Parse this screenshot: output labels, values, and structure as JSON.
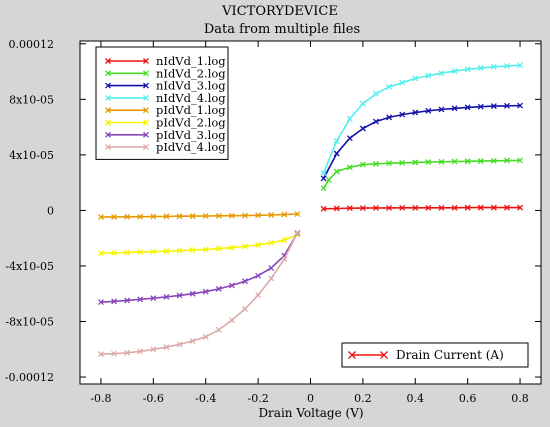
{
  "chart_data": {
    "type": "line",
    "title": "VICTORYDEVICE",
    "subtitle": "Data from multiple files",
    "xlabel": "Drain Voltage (V)",
    "ylabel": "",
    "xlim": [
      -0.88,
      0.88
    ],
    "ylim": [
      -0.000125,
      0.000122
    ],
    "x_ticks": [
      -0.8,
      -0.6,
      -0.4,
      -0.2,
      0,
      0.2,
      0.4,
      0.6,
      0.8
    ],
    "x_tick_labels": [
      "-0.8",
      "-0.6",
      "-0.4",
      "-0.2",
      "0",
      "0.2",
      "0.4",
      "0.6",
      "0.8"
    ],
    "y_ticks": [
      0.00012,
      8e-05,
      4e-05,
      0,
      -4e-05,
      -8e-05,
      -0.00012
    ],
    "y_tick_labels": [
      "0.00012",
      "8x10-05",
      "4x10-05",
      "0",
      "-4x10-05",
      "-8x10-05",
      "-0.00012"
    ],
    "grid": false,
    "legend_position": "top-left",
    "legend_bottom": {
      "position": "bottom-right",
      "label": "Drain Current (A)",
      "color": "#ee1111"
    },
    "series": [
      {
        "name": "nIdVd_1.log",
        "color": "#ee1111",
        "x": [
          0.05,
          0.1,
          0.15,
          0.2,
          0.25,
          0.3,
          0.35,
          0.4,
          0.45,
          0.5,
          0.55,
          0.6,
          0.65,
          0.7,
          0.75,
          0.8
        ],
        "y": [
          1.2e-06,
          1.4e-06,
          1.6e-06,
          1.7e-06,
          1.8e-06,
          1.8e-06,
          1.9e-06,
          1.9e-06,
          1.9e-06,
          1.9e-06,
          1.9e-06,
          2e-06,
          2e-06,
          2e-06,
          2e-06,
          2e-06
        ]
      },
      {
        "name": "nIdVd_2.log",
        "color": "#44dd22",
        "x": [
          0.05,
          0.07,
          0.1,
          0.15,
          0.2,
          0.25,
          0.3,
          0.35,
          0.4,
          0.45,
          0.5,
          0.55,
          0.6,
          0.65,
          0.7,
          0.75,
          0.8
        ],
        "y": [
          1.6e-05,
          2.2e-05,
          2.8e-05,
          3.1e-05,
          3.3e-05,
          3.35e-05,
          3.4e-05,
          3.43e-05,
          3.46e-05,
          3.48e-05,
          3.5e-05,
          3.52e-05,
          3.54e-05,
          3.55e-05,
          3.57e-05,
          3.59e-05,
          3.6e-05
        ]
      },
      {
        "name": "nIdVd_3.log",
        "color": "#1111aa",
        "x": [
          0.05,
          0.1,
          0.15,
          0.2,
          0.25,
          0.3,
          0.35,
          0.4,
          0.45,
          0.5,
          0.55,
          0.6,
          0.65,
          0.7,
          0.75,
          0.8
        ],
        "y": [
          2.3e-05,
          4.1e-05,
          5.2e-05,
          5.9e-05,
          6.4e-05,
          6.7e-05,
          6.9e-05,
          7.05e-05,
          7.17e-05,
          7.27e-05,
          7.35e-05,
          7.42e-05,
          7.47e-05,
          7.51e-05,
          7.53e-05,
          7.55e-05
        ]
      },
      {
        "name": "nIdVd_4.log",
        "color": "#55eeee",
        "x": [
          0.05,
          0.1,
          0.15,
          0.2,
          0.25,
          0.3,
          0.35,
          0.4,
          0.45,
          0.5,
          0.55,
          0.6,
          0.65,
          0.7,
          0.75,
          0.8
        ],
        "y": [
          2.7e-05,
          5e-05,
          6.6e-05,
          7.7e-05,
          8.4e-05,
          8.9e-05,
          9.2e-05,
          9.5e-05,
          9.7e-05,
          9.88e-05,
          0.0001003,
          0.0001016,
          0.0001026,
          0.0001034,
          0.000104,
          0.0001045
        ]
      },
      {
        "name": "pIdVd_1.log",
        "color": "#e69900",
        "x": [
          -0.8,
          -0.75,
          -0.7,
          -0.65,
          -0.6,
          -0.55,
          -0.5,
          -0.45,
          -0.4,
          -0.35,
          -0.3,
          -0.25,
          -0.2,
          -0.15,
          -0.1,
          -0.05
        ],
        "y": [
          -4.8e-06,
          -4.7e-06,
          -4.6e-06,
          -4.5e-06,
          -4.4e-06,
          -4.3e-06,
          -4.2e-06,
          -4.1e-06,
          -4e-06,
          -3.9e-06,
          -3.8e-06,
          -3.7e-06,
          -3.5e-06,
          -3.3e-06,
          -3e-06,
          -2.6e-06
        ]
      },
      {
        "name": "pIdVd_2.log",
        "color": "#f5f500",
        "x": [
          -0.8,
          -0.75,
          -0.7,
          -0.65,
          -0.6,
          -0.55,
          -0.5,
          -0.45,
          -0.4,
          -0.35,
          -0.3,
          -0.25,
          -0.2,
          -0.15,
          -0.1,
          -0.05
        ],
        "y": [
          -3.08e-05,
          -3.06e-05,
          -3.03e-05,
          -3e-05,
          -2.97e-05,
          -2.94e-05,
          -2.9e-05,
          -2.86e-05,
          -2.81e-05,
          -2.75e-05,
          -2.68e-05,
          -2.59e-05,
          -2.48e-05,
          -2.33e-05,
          -2.13e-05,
          -1.75e-05
        ]
      },
      {
        "name": "pIdVd_3.log",
        "color": "#8844bb",
        "x": [
          -0.8,
          -0.75,
          -0.7,
          -0.65,
          -0.6,
          -0.55,
          -0.5,
          -0.45,
          -0.4,
          -0.35,
          -0.3,
          -0.25,
          -0.2,
          -0.15,
          -0.1,
          -0.05
        ],
        "y": [
          -6.6e-05,
          -6.55e-05,
          -6.48e-05,
          -6.4e-05,
          -6.32e-05,
          -6.23e-05,
          -6.12e-05,
          -6e-05,
          -5.85e-05,
          -5.65e-05,
          -5.4e-05,
          -5.1e-05,
          -4.7e-05,
          -4.15e-05,
          -3.25e-05,
          -1.65e-05
        ]
      },
      {
        "name": "pIdVd_4.log",
        "color": "#ddaaaa",
        "x": [
          -0.8,
          -0.75,
          -0.7,
          -0.65,
          -0.6,
          -0.55,
          -0.5,
          -0.45,
          -0.4,
          -0.35,
          -0.3,
          -0.25,
          -0.2,
          -0.15,
          -0.1,
          -0.05
        ],
        "y": [
          -0.0001035,
          -0.0001032,
          -0.0001025,
          -0.0001015,
          -0.0001,
          -9.85e-05,
          -9.65e-05,
          -9.4e-05,
          -9.1e-05,
          -8.6e-05,
          -7.9e-05,
          -7.1e-05,
          -6.1e-05,
          -4.9e-05,
          -3.5e-05,
          -1.6e-05
        ]
      }
    ]
  }
}
